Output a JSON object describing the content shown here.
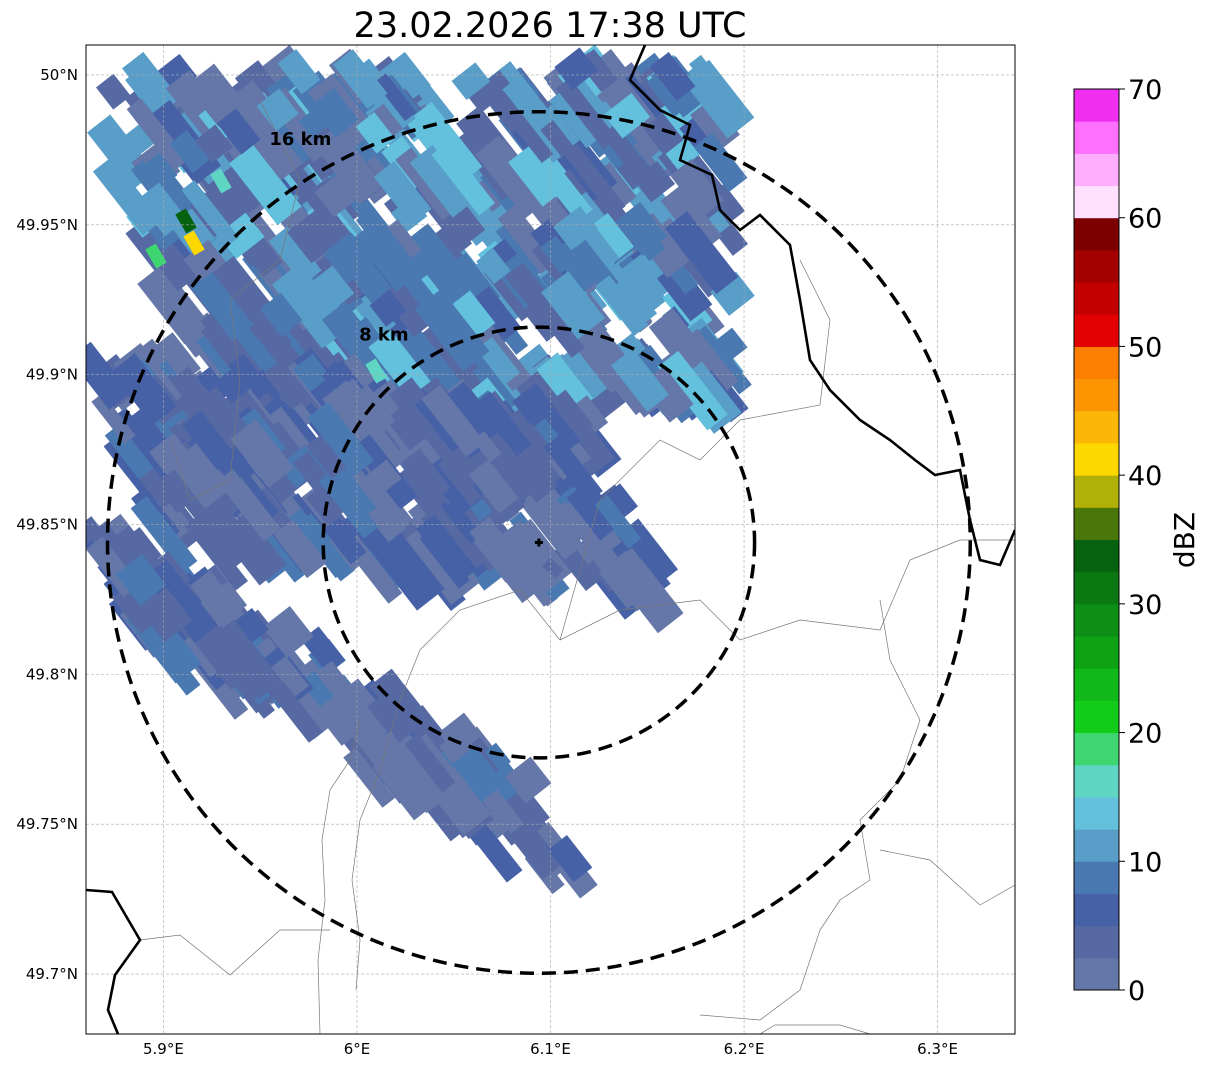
{
  "title": "23.02.2026 17:38 UTC",
  "map": {
    "lon_range": [
      5.86,
      6.34
    ],
    "lat_range": [
      49.68,
      50.01
    ],
    "x_ticks": [
      {
        "value": 5.9,
        "label": "5.9°E"
      },
      {
        "value": 6.0,
        "label": "6°E"
      },
      {
        "value": 6.1,
        "label": "6.1°E"
      },
      {
        "value": 6.2,
        "label": "6.2°E"
      },
      {
        "value": 6.3,
        "label": "6.3°E"
      }
    ],
    "y_ticks": [
      {
        "value": 50.0,
        "label": "50°N"
      },
      {
        "value": 49.95,
        "label": "49.95°N"
      },
      {
        "value": 49.9,
        "label": "49.9°N"
      },
      {
        "value": 49.85,
        "label": "49.85°N"
      },
      {
        "value": 49.8,
        "label": "49.8°N"
      },
      {
        "value": 49.75,
        "label": "49.75°N"
      },
      {
        "value": 49.7,
        "label": "49.7°N"
      }
    ],
    "gridlines": true,
    "radar_site": {
      "lon": 6.094,
      "lat": 49.844,
      "marker": "plus-icon"
    },
    "range_rings": [
      {
        "radius_km": 8,
        "label": "8 km"
      },
      {
        "radius_km": 16,
        "label": "16 km"
      }
    ]
  },
  "colorbar": {
    "label": "dBZ",
    "min": 0,
    "max": 70,
    "tick_values": [
      0,
      10,
      20,
      30,
      40,
      50,
      60,
      70
    ],
    "tick_labels": [
      "0",
      "10",
      "20",
      "30",
      "40",
      "50",
      "60",
      "70"
    ],
    "colors": [
      "#6477a8",
      "#5669a3",
      "#4661a6",
      "#4a79b2",
      "#589ec8",
      "#63c1dd",
      "#5fd5c4",
      "#3dd671",
      "#13cc1a",
      "#10b81a",
      "#0fa214",
      "#0d8f15",
      "#0b7812",
      "#07620f",
      "#49770a",
      "#b0b007",
      "#fdd700",
      "#fcb605",
      "#fd9503",
      "#fe7f00",
      "#e30000",
      "#c30000",
      "#a30000",
      "#7d0000",
      "#ffe0ff",
      "#ffaeff",
      "#ff70ff",
      "#f030f0"
    ]
  }
}
